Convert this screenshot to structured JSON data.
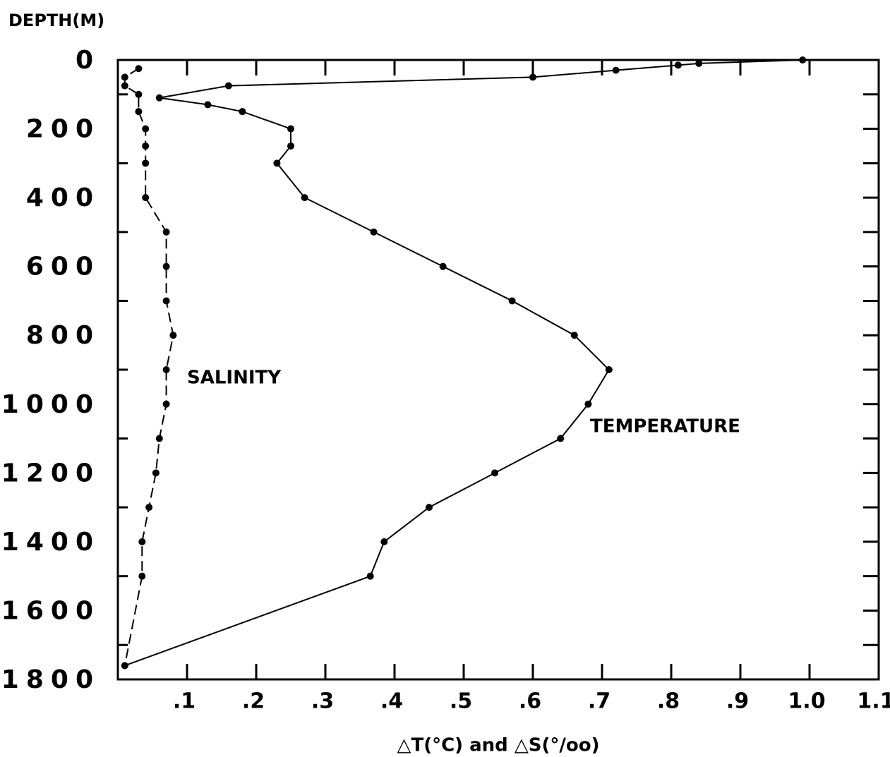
{
  "chart_data": {
    "type": "line",
    "y_axis_title": "DEPTH(M)",
    "x_axis_title": "△T(°C) and △S(°/oo)",
    "xlim": [
      0,
      1.1
    ],
    "ylim": [
      0,
      1800
    ],
    "y_inverted": true,
    "xticks": [
      {
        "value": 0.1,
        "label": ".1"
      },
      {
        "value": 0.2,
        "label": ".2"
      },
      {
        "value": 0.3,
        "label": ".3"
      },
      {
        "value": 0.4,
        "label": ".4"
      },
      {
        "value": 0.5,
        "label": ".5"
      },
      {
        "value": 0.6,
        "label": ".6"
      },
      {
        "value": 0.7,
        "label": ".7"
      },
      {
        "value": 0.8,
        "label": ".8"
      },
      {
        "value": 0.9,
        "label": ".9"
      },
      {
        "value": 1.0,
        "label": "1.0"
      },
      {
        "value": 1.1,
        "label": "1.1"
      }
    ],
    "yticks": [
      0,
      200,
      400,
      600,
      800,
      1000,
      1200,
      1400,
      1600,
      1800
    ],
    "yminorticks": [
      100,
      300,
      500,
      700,
      900,
      1100,
      1300,
      1500,
      1700
    ],
    "series": [
      {
        "name": "TEMPERATURE",
        "color": "#000000",
        "dash": false,
        "x": [
          0.99,
          0.84,
          0.81,
          0.72,
          0.6,
          0.16,
          0.06,
          0.13,
          0.18,
          0.25,
          0.25,
          0.23,
          0.27,
          0.37,
          0.47,
          0.57,
          0.66,
          0.71,
          0.68,
          0.64,
          0.545,
          0.45,
          0.385,
          0.365,
          0.01
        ],
        "values": [
          0,
          10,
          15,
          30,
          50,
          75,
          110,
          130,
          150,
          200,
          250,
          300,
          400,
          500,
          600,
          700,
          800,
          900,
          1000,
          1100,
          1200,
          1300,
          1400,
          1500,
          1760
        ]
      },
      {
        "name": "SALINITY",
        "color": "#000000",
        "dash": true,
        "x": [
          0.03,
          0.01,
          0.01,
          0.03,
          0.03,
          0.04,
          0.04,
          0.04,
          0.04,
          0.07,
          0.07,
          0.07,
          0.08,
          0.07,
          0.07,
          0.06,
          0.055,
          0.045,
          0.035,
          0.035,
          0.01
        ],
        "values": [
          25,
          50,
          75,
          100,
          150,
          200,
          250,
          300,
          400,
          500,
          600,
          700,
          800,
          900,
          1000,
          1100,
          1200,
          1300,
          1400,
          1500,
          1760
        ]
      }
    ]
  }
}
